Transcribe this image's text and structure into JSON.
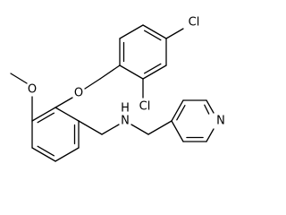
{
  "labels": {
    "methoxy_oxygen": "O",
    "ether_oxygen": "O",
    "chlorine_ortho": "Cl",
    "chlorine_para": "Cl",
    "amine_hydrogen": "H",
    "amine_nitrogen": "N",
    "pyridine_nitrogen": "N"
  }
}
